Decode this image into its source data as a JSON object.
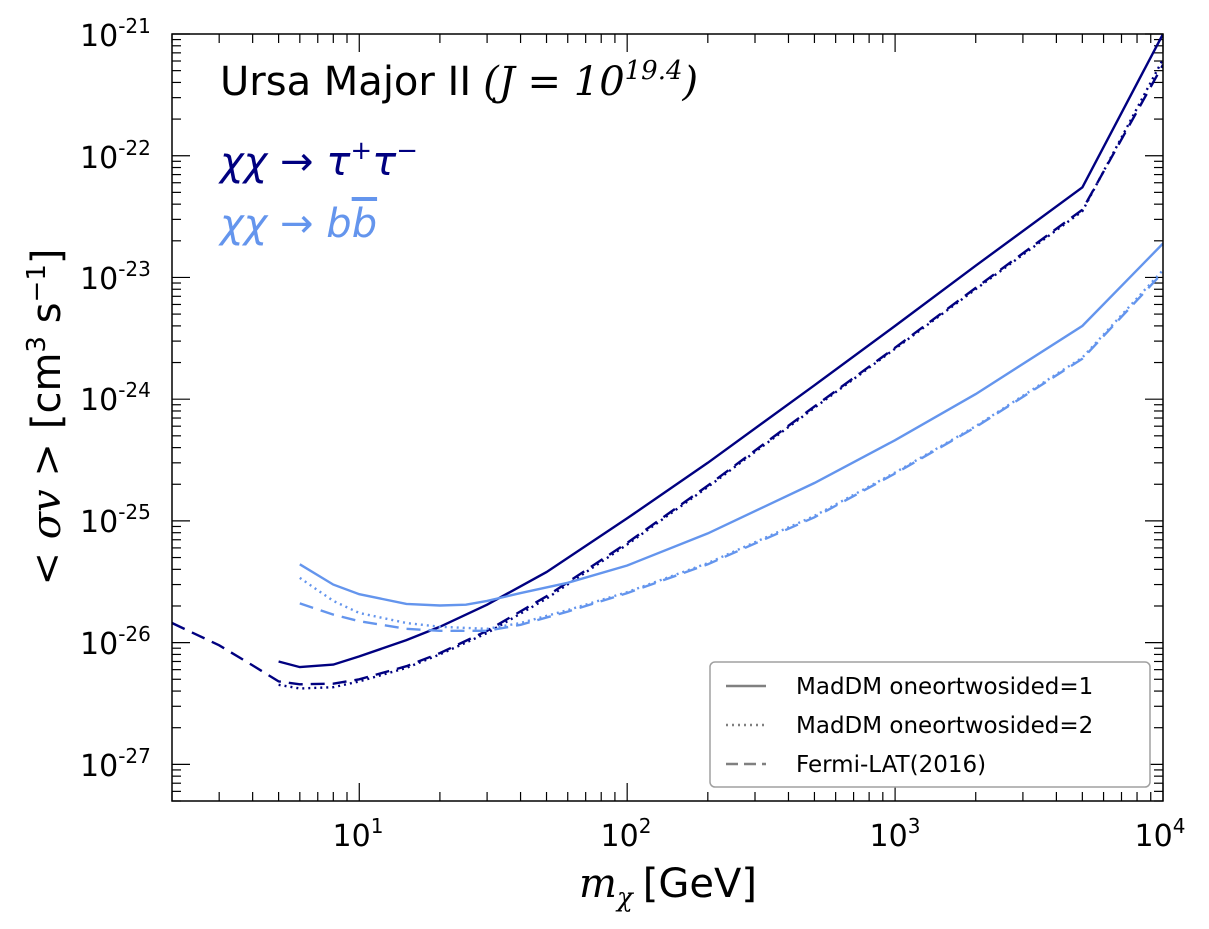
{
  "chart_data": {
    "type": "line",
    "xscale": "log",
    "yscale": "log",
    "xlim": [
      2,
      10000
    ],
    "ylim": [
      5e-28,
      1e-21
    ],
    "x_ticks": [
      {
        "base": "10",
        "exp": "1",
        "value": 10
      },
      {
        "base": "10",
        "exp": "2",
        "value": 100
      },
      {
        "base": "10",
        "exp": "3",
        "value": 1000
      },
      {
        "base": "10",
        "exp": "4",
        "value": 10000
      }
    ],
    "y_ticks": [
      {
        "base": "10",
        "exp": "-27",
        "value": 1e-27
      },
      {
        "base": "10",
        "exp": "-26",
        "value": 1e-26
      },
      {
        "base": "10",
        "exp": "-25",
        "value": 1e-25
      },
      {
        "base": "10",
        "exp": "-24",
        "value": 1e-24
      },
      {
        "base": "10",
        "exp": "-23",
        "value": 1e-23
      },
      {
        "base": "10",
        "exp": "-22",
        "value": 1e-22
      },
      {
        "base": "10",
        "exp": "-21",
        "value": 1e-21
      }
    ],
    "xlabel": {
      "symbol": "m",
      "sub": "χ",
      "unit": "[GeV]"
    },
    "ylabel": {
      "symbol": "< σv >",
      "unit_pre": "[cm",
      "unit_sup": "3",
      "unit_mid": " s",
      "unit_sup2": "−1",
      "unit_post": "]"
    },
    "annotations": {
      "title_text": "Ursa Major II",
      "title_math_pre": "(J = 10",
      "title_math_sup": "19.4",
      "title_math_post": ")",
      "channel_tau_pre": "χχ → τ",
      "channel_tau_sup1": "+",
      "channel_tau_mid": "τ",
      "channel_tau_sup2": "−",
      "channel_b_pre": "χχ → b",
      "channel_b_bar": "b"
    },
    "legend": {
      "position": "lower-right",
      "entries": [
        {
          "label": "MadDM oneortwosided=1",
          "style": "solid"
        },
        {
          "label": "MadDM oneortwosided=2",
          "style": "dotted"
        },
        {
          "label": "Fermi-LAT(2016)",
          "style": "dashed"
        }
      ]
    },
    "colors": {
      "tau": "#000080",
      "bb": "#6495ED",
      "legend_line": "#808080"
    },
    "series": [
      {
        "channel": "tau",
        "style": "solid",
        "x": [
          5,
          6,
          8,
          10,
          15,
          20,
          30,
          50,
          100,
          200,
          500,
          1000,
          2000,
          5000,
          10000
        ],
        "y": [
          7e-27,
          6.3e-27,
          6.6e-27,
          7.7e-27,
          1.05e-26,
          1.35e-26,
          2.05e-26,
          3.8e-26,
          1.05e-25,
          3e-25,
          1.3e-24,
          4e-24,
          1.25e-23,
          5.5e-23,
          1e-21
        ]
      },
      {
        "channel": "tau",
        "style": "dotted",
        "x": [
          5,
          6,
          8,
          10,
          15,
          20,
          30,
          50,
          100,
          200,
          500,
          1000,
          2000,
          5000,
          10000
        ],
        "y": [
          4.5e-27,
          4.2e-27,
          4.3e-27,
          4.8e-27,
          6.2e-27,
          8e-27,
          1.2e-26,
          2.3e-26,
          6.4e-26,
          1.9e-25,
          8.5e-25,
          2.6e-24,
          8e-24,
          3.5e-23,
          6.2e-22
        ]
      },
      {
        "channel": "tau",
        "style": "dashed",
        "x": [
          2,
          3,
          4,
          5,
          6,
          8,
          10,
          15,
          20,
          30,
          50,
          100,
          200,
          500,
          1000,
          2000,
          5000,
          10000
        ],
        "y": [
          1.45e-26,
          9.5e-27,
          6.5e-27,
          4.8e-27,
          4.55e-27,
          4.6e-27,
          5e-27,
          6.4e-27,
          8.2e-27,
          1.25e-26,
          2.4e-26,
          6.6e-26,
          1.95e-25,
          8.7e-25,
          2.65e-24,
          8.2e-24,
          3.6e-23,
          5.6e-22
        ]
      },
      {
        "channel": "bb",
        "style": "solid",
        "x": [
          6,
          8,
          10,
          15,
          20,
          25,
          30,
          40,
          60,
          100,
          200,
          500,
          1000,
          2000,
          5000,
          10000
        ],
        "y": [
          4.4e-26,
          3e-26,
          2.5e-26,
          2.08e-26,
          2.02e-26,
          2.05e-26,
          2.2e-26,
          2.55e-26,
          3.1e-26,
          4.3e-26,
          7.9e-26,
          2.05e-25,
          4.6e-25,
          1.1e-24,
          4e-24,
          1.9e-23
        ]
      },
      {
        "channel": "bb",
        "style": "dotted",
        "x": [
          6,
          8,
          10,
          15,
          20,
          30,
          40,
          60,
          100,
          200,
          500,
          1000,
          2000,
          5000,
          10000
        ],
        "y": [
          3.4e-26,
          2.2e-26,
          1.75e-26,
          1.45e-26,
          1.35e-26,
          1.3e-26,
          1.45e-26,
          1.85e-26,
          2.6e-26,
          4.5e-26,
          1.1e-25,
          2.5e-25,
          6e-25,
          2.2e-24,
          1.15e-23
        ]
      },
      {
        "channel": "bb",
        "style": "dashed",
        "x": [
          6,
          8,
          10,
          15,
          20,
          30,
          40,
          60,
          100,
          200,
          500,
          1000,
          2000,
          5000,
          10000
        ],
        "y": [
          2.1e-26,
          1.7e-26,
          1.5e-26,
          1.3e-26,
          1.25e-26,
          1.25e-26,
          1.4e-26,
          1.8e-26,
          2.55e-26,
          4.4e-26,
          1.07e-25,
          2.45e-25,
          5.9e-25,
          2.15e-24,
          1.1e-23
        ]
      }
    ]
  }
}
